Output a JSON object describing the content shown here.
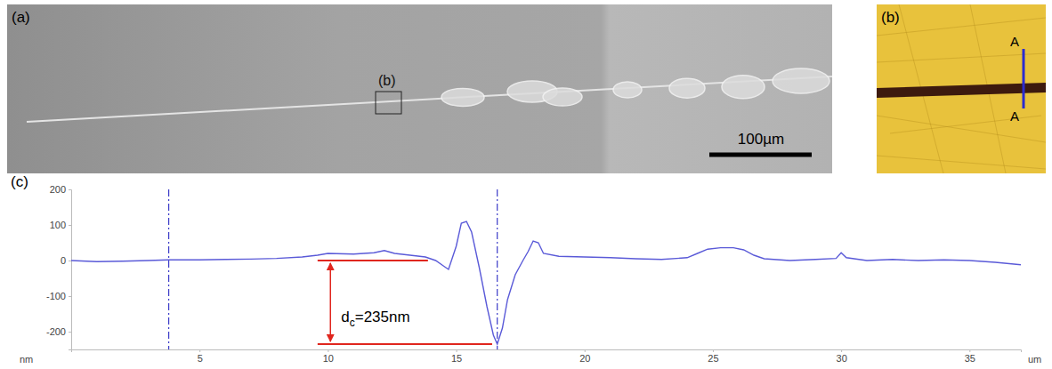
{
  "chart_data": {
    "type": "line",
    "x": [
      0,
      1,
      2,
      3,
      3.8,
      5,
      6,
      7,
      8,
      9,
      9.6,
      10,
      11,
      11.8,
      12.2,
      12.6,
      13.2,
      13.8,
      14.2,
      14.5,
      14.7,
      15.0,
      15.2,
      15.4,
      15.6,
      15.9,
      16.2,
      16.45,
      16.6,
      16.8,
      17.0,
      17.3,
      17.6,
      17.8,
      18.0,
      18.2,
      18.4,
      19,
      20,
      21,
      22,
      23,
      24,
      24.4,
      24.8,
      25.3,
      25.8,
      26.2,
      26.6,
      27,
      28,
      29,
      29.8,
      30,
      30.2,
      31,
      32,
      33,
      34,
      35,
      36,
      37
    ],
    "values": [
      0,
      -3,
      -2,
      0,
      2,
      2,
      3,
      4,
      6,
      10,
      15,
      20,
      18,
      22,
      28,
      20,
      15,
      10,
      0,
      -15,
      -25,
      40,
      105,
      110,
      80,
      -20,
      -130,
      -210,
      -235,
      -190,
      -110,
      -40,
      0,
      25,
      55,
      50,
      20,
      12,
      10,
      8,
      5,
      3,
      8,
      20,
      32,
      36,
      36,
      30,
      15,
      5,
      0,
      3,
      6,
      22,
      8,
      0,
      3,
      0,
      2,
      0,
      -5,
      -12
    ],
    "color": "#5a5ad8",
    "xlim": [
      0,
      37
    ],
    "xticks": [
      5,
      10,
      15,
      20,
      25,
      30,
      35
    ],
    "ylim": [
      -250,
      200
    ],
    "yticks": [
      -200,
      -100,
      0,
      100,
      200
    ],
    "x_label": "um",
    "y_label": "nm",
    "grid": false,
    "vlines": [
      3.8,
      16.6
    ],
    "annotations": [
      {
        "text": "d",
        "subscript": "c",
        "suffix": "=235nm",
        "x": 10.1,
        "y_from": 0,
        "y_to": -235,
        "ref_x_start": 9.6,
        "ref_x_end": [
          13.9,
          16.4
        ]
      }
    ]
  },
  "figure": {
    "panel_a": {
      "label": "(a)",
      "inset_label": "(b)",
      "scale_bar": "100µm"
    },
    "panel_b": {
      "label": "(b)",
      "section_labels": [
        "A",
        "A"
      ]
    },
    "panel_c": {
      "label": "(c)"
    }
  }
}
